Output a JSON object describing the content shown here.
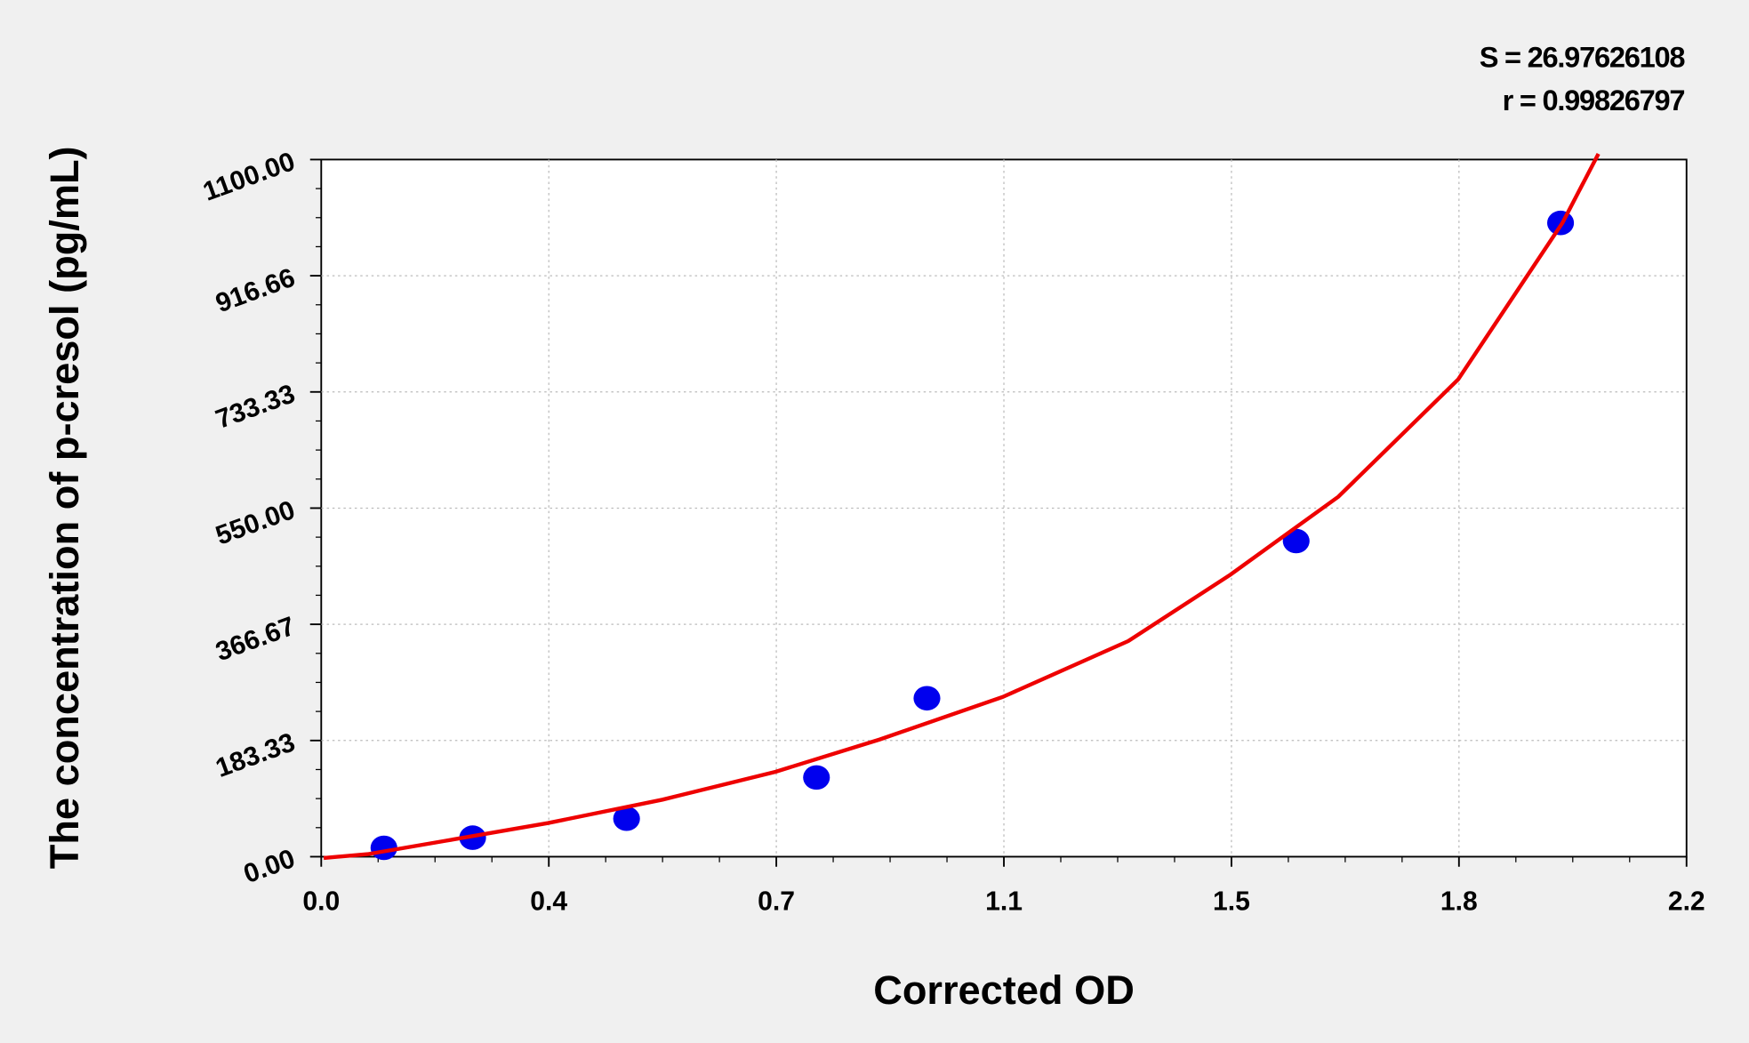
{
  "chart_data": {
    "type": "scatter",
    "xlabel": "Corrected OD",
    "ylabel": "The concentration of p-cresol (pg/mL)",
    "annotations": [
      "S = 26.97626108",
      "r = 0.99826797"
    ],
    "xlim": [
      0,
      2.2
    ],
    "xticks": [
      {
        "value": 0,
        "label": "0.0"
      },
      {
        "value": 0.3667,
        "label": "0.4"
      },
      {
        "value": 0.7333,
        "label": "0.7"
      },
      1.1,
      {
        "value": 1.4667,
        "label": "1.5"
      },
      {
        "value": 1.8333,
        "label": "1.8"
      },
      2.2
    ],
    "ylim": [
      0,
      1100
    ],
    "yticks": [
      {
        "value": 0,
        "label": "0.00"
      },
      183.33,
      366.67,
      {
        "value": 550,
        "label": "550.00"
      },
      733.33,
      916.66,
      {
        "value": 1100,
        "label": "1100.00"
      }
    ],
    "grid": true,
    "series": [
      {
        "color": "#0000ee",
        "x": [
          0.101,
          0.244,
          0.492,
          0.798,
          0.976,
          1.571,
          1.997
        ],
        "values": [
          14,
          30,
          60,
          125,
          250,
          498,
          1000
        ]
      },
      {
        "color": "#ee0000",
        "line": true,
        "x": [
          0.004,
          0.075,
          0.2,
          0.365,
          0.55,
          0.732,
          0.9,
          1.098,
          1.3,
          1.465,
          1.639,
          1.832,
          2.0,
          2.058
        ],
        "values": [
          -2,
          4,
          25,
          53,
          90,
          134,
          185,
          252,
          340,
          445,
          568,
          753,
          1000,
          1109
        ]
      }
    ]
  }
}
